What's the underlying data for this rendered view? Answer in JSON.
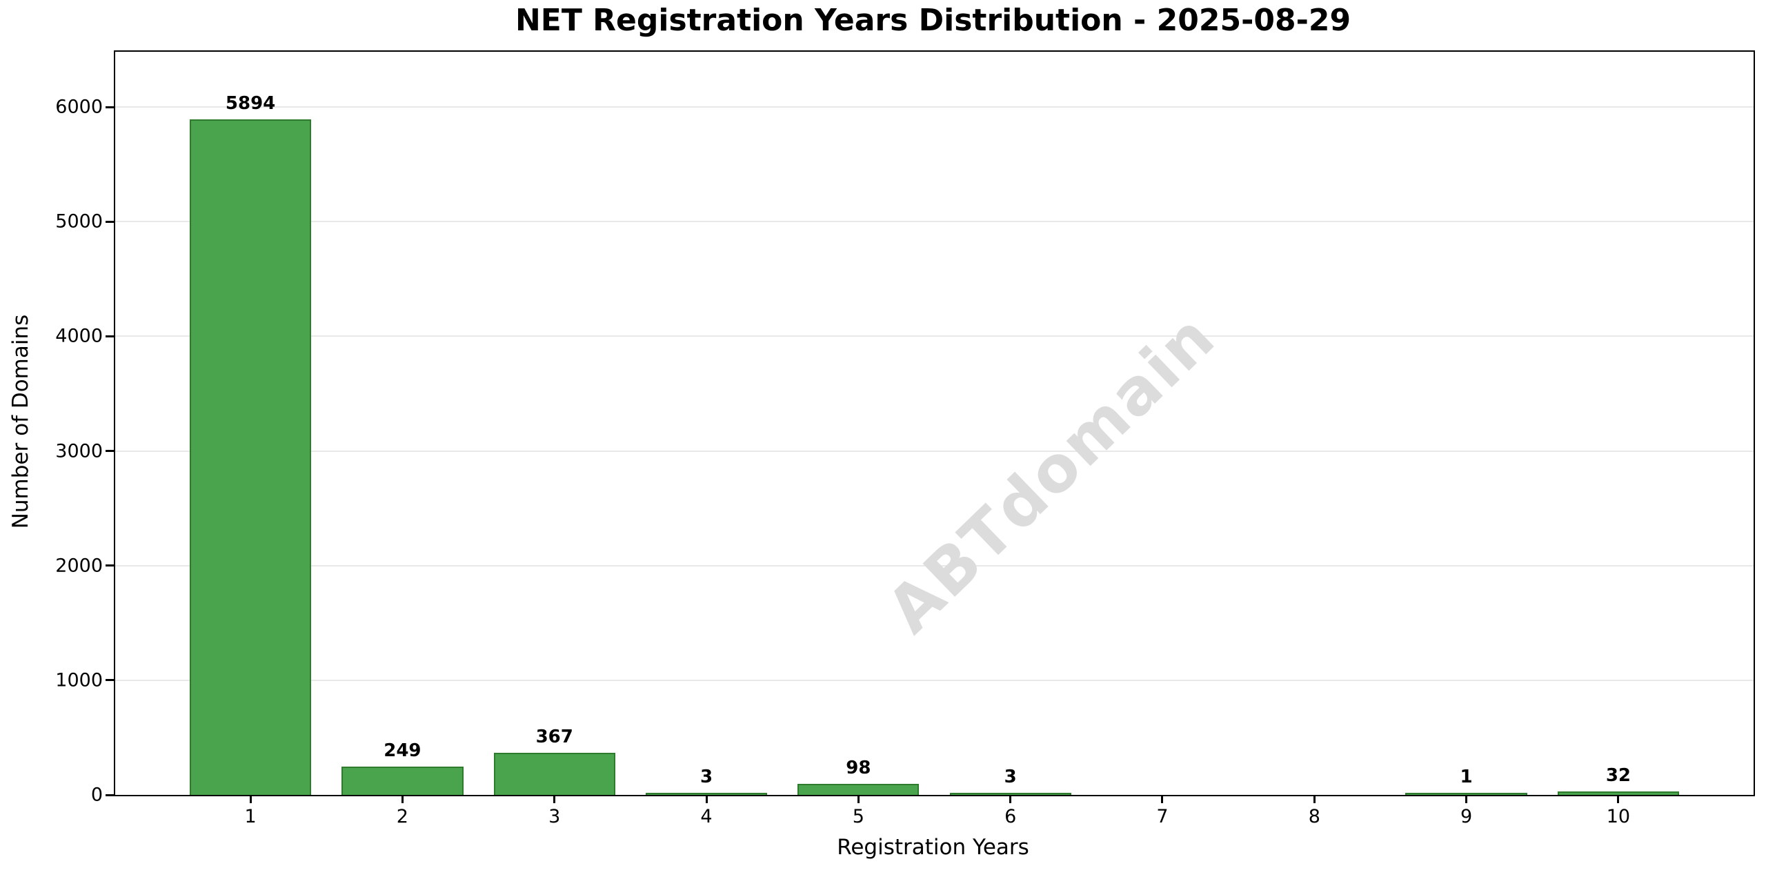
{
  "chart_data": {
    "type": "bar",
    "title": "NET Registration Years Distribution - 2025-08-29",
    "xlabel": "Registration Years",
    "ylabel": "Number of Domains",
    "categories": [
      "1",
      "2",
      "3",
      "4",
      "5",
      "6",
      "7",
      "8",
      "9",
      "10"
    ],
    "values": [
      5894,
      249,
      367,
      3,
      98,
      3,
      0,
      0,
      1,
      32
    ],
    "bar_labels": [
      "5894",
      "249",
      "367",
      "3",
      "98",
      "3",
      "",
      "",
      "1",
      "32"
    ],
    "ytick_values": [
      0,
      1000,
      2000,
      3000,
      4000,
      5000,
      6000
    ],
    "ytick_labels": [
      "0",
      "1000",
      "2000",
      "3000",
      "4000",
      "5000",
      "6000"
    ],
    "ylim": [
      0,
      6483
    ],
    "xlim": [
      0.11,
      10.89
    ],
    "bar_width_units": 0.8,
    "grid": "horizontal",
    "legend": "none",
    "watermark": "ABTdomain",
    "colors": {
      "bar_fill": "#4aa34d",
      "bar_edge": "#2e7b2e",
      "grid": "#e8e8e8",
      "watermark": "#dcdcdc",
      "text": "#000000",
      "background": "#ffffff"
    }
  }
}
